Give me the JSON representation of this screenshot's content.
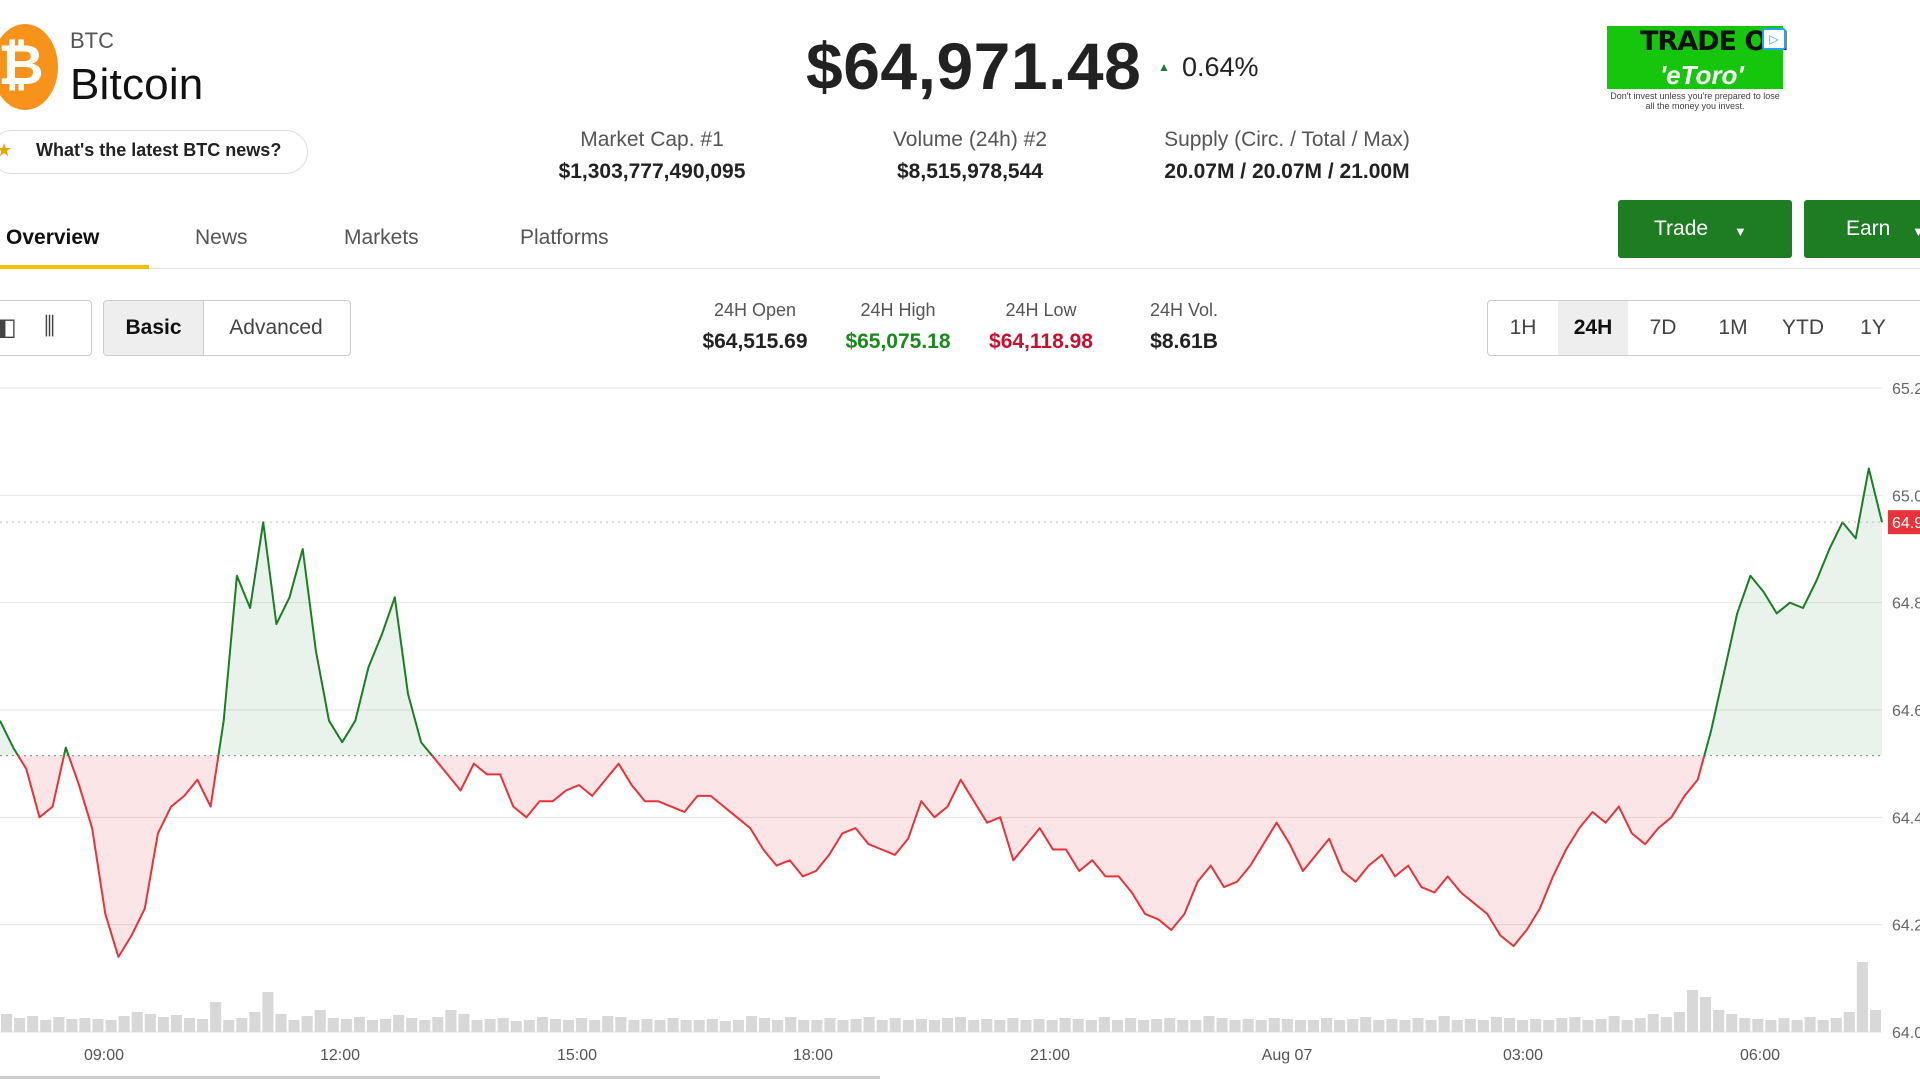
{
  "coin": {
    "ticker": "BTC",
    "name": "Bitcoin",
    "logo_symbol": "₿",
    "brand_color": "#f7931a",
    "news_button": "What's the latest BTC news?",
    "price": "$64,971.48",
    "change_pct": "0.64%",
    "change_direction": "up"
  },
  "stats": [
    {
      "label": "Market Cap. #1",
      "value": "$1,303,777,490,095"
    },
    {
      "label": "Volume (24h) #2",
      "value": "$8,515,978,544"
    },
    {
      "label": "Supply (Circ. / Total / Max)",
      "value": "20.07M / 20.07M / 21.00M"
    }
  ],
  "ad": {
    "line1": "TRADE ON",
    "line2": "'eToro'",
    "disclaimer": "Don't invest unless you're prepared to lose all the money you invest.",
    "color": "#16c60c"
  },
  "tabs": [
    {
      "label": "Overview",
      "active": true
    },
    {
      "label": "News"
    },
    {
      "label": "Markets"
    },
    {
      "label": "Platforms"
    }
  ],
  "actions": {
    "trade": "Trade",
    "earn": "Earn",
    "accent": "#1e7d22"
  },
  "chart_toolbar": {
    "icons": [
      "line-chart-icon",
      "candlestick-icon"
    ],
    "modes": [
      "Basic",
      "Advanced"
    ],
    "active_mode": "Basic"
  },
  "ohlc": {
    "open_label": "24H Open",
    "open": "$64,515.69",
    "high_label": "24H High",
    "high": "$65,075.18",
    "low_label": "24H Low",
    "low": "$64,118.98",
    "vol_label": "24H Vol.",
    "vol": "$8.61B",
    "high_color": "#1a8a1a",
    "low_color": "#c8102e"
  },
  "ranges": [
    "1H",
    "24H",
    "7D",
    "1M",
    "YTD",
    "1Y"
  ],
  "active_range": "24H",
  "chart_data": {
    "type": "line",
    "x_ticks": [
      "09:00",
      "12:00",
      "15:00",
      "18:00",
      "21:00",
      "Aug 07",
      "03:00",
      "06:00"
    ],
    "y_ticks": [
      "65.2",
      "65.0",
      "64.8",
      "64.6",
      "64.4",
      "64.2",
      "64.0"
    ],
    "y_unit": "thousands USD",
    "ylim": [
      64.0,
      65.2
    ],
    "baseline": 64.515,
    "current_price_label": "64.9",
    "up_color": "#1a7f22",
    "down_color": "#e8333a",
    "series": [
      {
        "values": [
          64.58,
          64.53,
          64.49,
          64.4,
          64.42,
          64.53,
          64.46,
          64.38,
          64.22,
          64.14,
          64.18,
          64.23,
          64.37,
          64.42,
          64.44,
          64.47,
          64.42,
          64.58,
          64.85,
          64.79,
          64.95,
          64.76,
          64.81,
          64.9,
          64.71,
          64.58,
          64.54,
          64.58,
          64.68,
          64.74,
          64.81,
          64.63,
          64.54,
          64.51,
          64.48,
          64.45,
          64.5,
          64.48,
          64.48,
          64.42,
          64.4,
          64.43,
          64.43,
          64.45,
          64.46,
          64.44,
          64.47,
          64.5,
          64.46,
          64.43,
          64.43,
          64.42,
          64.41,
          64.44,
          64.44,
          64.42,
          64.4,
          64.38,
          64.34,
          64.31,
          64.32,
          64.29,
          64.3,
          64.33,
          64.37,
          64.38,
          64.35,
          64.34,
          64.33,
          64.36,
          64.43,
          64.4,
          64.42,
          64.47,
          64.43,
          64.39,
          64.4,
          64.32,
          64.35,
          64.38,
          64.34,
          64.34,
          64.3,
          64.32,
          64.29,
          64.29,
          64.26,
          64.22,
          64.21,
          64.19,
          64.22,
          64.28,
          64.31,
          64.27,
          64.28,
          64.31,
          64.35,
          64.39,
          64.35,
          64.3,
          64.33,
          64.36,
          64.3,
          64.28,
          64.31,
          64.33,
          64.29,
          64.31,
          64.27,
          64.26,
          64.29,
          64.26,
          64.24,
          64.22,
          64.18,
          64.16,
          64.19,
          64.23,
          64.29,
          64.34,
          64.38,
          64.41,
          64.39,
          64.42,
          64.37,
          64.35,
          64.38,
          64.4,
          64.44,
          64.47,
          64.56,
          64.67,
          64.78,
          64.85,
          64.82,
          64.78,
          64.8,
          64.79,
          64.84,
          64.9,
          64.95,
          64.92,
          65.05,
          64.95
        ]
      }
    ],
    "volume": [
      18,
      14,
      16,
      12,
      15,
      13,
      14,
      13,
      12,
      16,
      20,
      18,
      15,
      17,
      14,
      13,
      30,
      12,
      14,
      20,
      40,
      18,
      12,
      16,
      22,
      14,
      13,
      15,
      12,
      13,
      17,
      14,
      12,
      15,
      22,
      18,
      12,
      13,
      14,
      11,
      12,
      15,
      13,
      12,
      14,
      12,
      16,
      15,
      12,
      13,
      12,
      14,
      12,
      12,
      13,
      11,
      12,
      16,
      14,
      12,
      15,
      12,
      12,
      14,
      12,
      13,
      15,
      12,
      14,
      12,
      13,
      12,
      14,
      15,
      12,
      13,
      12,
      14,
      12,
      13,
      12,
      14,
      13,
      12,
      15,
      12,
      14,
      12,
      13,
      14,
      12,
      12,
      16,
      14,
      12,
      13,
      12,
      14,
      13,
      12,
      12,
      14,
      12,
      13,
      15,
      12,
      13,
      12,
      14,
      12,
      16,
      12,
      13,
      12,
      15,
      14,
      12,
      13,
      12,
      14,
      15,
      12,
      13,
      16,
      12,
      14,
      18,
      15,
      20,
      42,
      35,
      22,
      18,
      14,
      13,
      12,
      14,
      12,
      15,
      12,
      14,
      20,
      70,
      22
    ]
  }
}
